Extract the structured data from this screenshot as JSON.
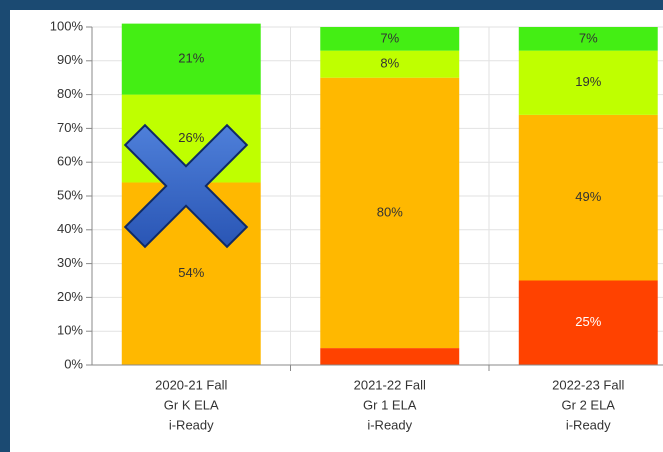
{
  "chart_data": {
    "type": "stacked_bar",
    "categories": [
      [
        "2020-21 Fall",
        "Gr K ELA",
        "i-Ready"
      ],
      [
        "2021-22 Fall",
        "Gr 1 ELA",
        "i-Ready"
      ],
      [
        "2022-23 Fall",
        "Gr 2 ELA",
        "i-Ready"
      ]
    ],
    "series": [
      {
        "color": "#ff4200",
        "values": [
          null,
          5,
          25
        ],
        "value_labels": [
          null,
          null,
          "25%"
        ]
      },
      {
        "color": "#ffb800",
        "values": [
          54,
          80,
          49
        ],
        "value_labels": [
          "54%",
          "80%",
          "49%"
        ]
      },
      {
        "color": "#bfff00",
        "values": [
          26,
          8,
          19
        ],
        "value_labels": [
          "26%",
          "8%",
          "19%"
        ]
      },
      {
        "color": "#44ee14",
        "values": [
          21,
          7,
          7
        ],
        "value_labels": [
          "21%",
          "7%",
          "7%"
        ]
      }
    ],
    "ylim": [
      0,
      100
    ],
    "yticks": [
      {
        "value": 0,
        "label": "0%"
      },
      {
        "value": 10,
        "label": "10%"
      },
      {
        "value": 20,
        "label": "20%"
      },
      {
        "value": 30,
        "label": "30%"
      },
      {
        "value": 40,
        "label": "40%"
      },
      {
        "value": 50,
        "label": "50%"
      },
      {
        "value": 60,
        "label": "60%"
      },
      {
        "value": 70,
        "label": "70%"
      },
      {
        "value": 80,
        "label": "80%"
      },
      {
        "value": 90,
        "label": "90%"
      },
      {
        "value": 100,
        "label": "100%"
      }
    ],
    "grid": true
  }
}
